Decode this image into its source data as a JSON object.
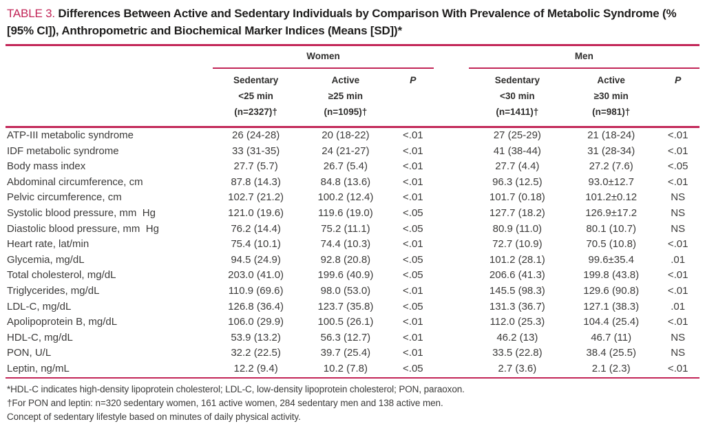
{
  "accent_color": "#c22557",
  "title": {
    "tag": "TABLE 3.",
    "text": " Differences Between Active and Sedentary Individuals by Comparison With Prevalence of Metabolic Syndrome (% [95% CI]), Anthropometric and Biochemical Marker Indices (Means [SD])*"
  },
  "table": {
    "groups": {
      "women": "Women",
      "men": "Men"
    },
    "headers": {
      "women_sedentary": {
        "line1": "Sedentary",
        "line2": "<25 min",
        "line3": "(n=2327)†"
      },
      "women_active": {
        "line1": "Active",
        "line2": "≥25 min",
        "line3": "(n=1095)†"
      },
      "women_p": "P",
      "men_sedentary": {
        "line1": "Sedentary",
        "line2": "<30 min",
        "line3": "(n=1411)†"
      },
      "men_active": {
        "line1": "Active",
        "line2": "≥30 min",
        "line3": "(n=981)†"
      },
      "men_p": "P"
    },
    "rows": [
      {
        "label": "ATP-III metabolic syndrome",
        "w_sed": "26 (24-28)",
        "w_act": "20 (18-22)",
        "w_p": "<.01",
        "m_sed": "27 (25-29)",
        "m_act": "21 (18-24)",
        "m_p": "<.01"
      },
      {
        "label": "IDF metabolic syndrome",
        "w_sed": "33 (31-35)",
        "w_act": "24 (21-27)",
        "w_p": "<.01",
        "m_sed": "41 (38-44)",
        "m_act": "31 (28-34)",
        "m_p": "<.01"
      },
      {
        "label": "Body mass index",
        "w_sed": "27.7 (5.7)",
        "w_act": "26.7 (5.4)",
        "w_p": "<.01",
        "m_sed": "27.7 (4.4)",
        "m_act": "27.2 (7.6)",
        "m_p": "<.05"
      },
      {
        "label": "Abdominal circumference, cm",
        "w_sed": "87.8 (14.3)",
        "w_act": "84.8 (13.6)",
        "w_p": "<.01",
        "m_sed": "96.3 (12.5)",
        "m_act": "93.0±12.7",
        "m_p": "<.01"
      },
      {
        "label": "Pelvic circumference, cm",
        "w_sed": "102.7 (21.2)",
        "w_act": "100.2 (12.4)",
        "w_p": "<.01",
        "m_sed": "101.7 (0.18)",
        "m_act": "101.2±0.12",
        "m_p": "NS"
      },
      {
        "label": "Systolic blood pressure, mm  Hg",
        "w_sed": "121.0 (19.6)",
        "w_act": "119.6 (19.0)",
        "w_p": "<.05",
        "m_sed": "127.7 (18.2)",
        "m_act": "126.9±17.2",
        "m_p": "NS"
      },
      {
        "label": "Diastolic blood pressure, mm  Hg",
        "w_sed": "76.2 (14.4)",
        "w_act": "75.2 (11.1)",
        "w_p": "<.05",
        "m_sed": "80.9 (11.0)",
        "m_act": "80.1 (10.7)",
        "m_p": "NS"
      },
      {
        "label": "Heart rate, lat/min",
        "w_sed": "75.4 (10.1)",
        "w_act": "74.4 (10.3)",
        "w_p": "<.01",
        "m_sed": "72.7 (10.9)",
        "m_act": "70.5 (10.8)",
        "m_p": "<.01"
      },
      {
        "label": "Glycemia, mg/dL",
        "w_sed": "94.5 (24.9)",
        "w_act": "92.8 (20.8)",
        "w_p": "<.05",
        "m_sed": "101.2 (28.1)",
        "m_act": "99.6±35.4",
        "m_p": ".01"
      },
      {
        "label": "Total cholesterol, mg/dL",
        "w_sed": "203.0 (41.0)",
        "w_act": "199.6 (40.9)",
        "w_p": "<.05",
        "m_sed": "206.6 (41.3)",
        "m_act": "199.8 (43.8)",
        "m_p": "<.01"
      },
      {
        "label": "Triglycerides, mg/dL",
        "w_sed": "110.9 (69.6)",
        "w_act": "98.0 (53.0)",
        "w_p": "<.01",
        "m_sed": "145.5 (98.3)",
        "m_act": "129.6 (90.8)",
        "m_p": "<.01"
      },
      {
        "label": "LDL-C, mg/dL",
        "w_sed": "126.8 (36.4)",
        "w_act": "123.7 (35.8)",
        "w_p": "<.05",
        "m_sed": "131.3 (36.7)",
        "m_act": "127.1 (38.3)",
        "m_p": ".01"
      },
      {
        "label": "Apolipoprotein B, mg/dL",
        "w_sed": "106.0 (29.9)",
        "w_act": "100.5 (26.1)",
        "w_p": "<.01",
        "m_sed": "112.0 (25.3)",
        "m_act": "104.4 (25.4)",
        "m_p": "<.01"
      },
      {
        "label": "HDL-C, mg/dL",
        "w_sed": "53.9 (13.2)",
        "w_act": "56.3 (12.7)",
        "w_p": "<.01",
        "m_sed": "46.2 (13)",
        "m_act": "46.7 (11)",
        "m_p": "NS"
      },
      {
        "label": "PON, U/L",
        "w_sed": "32.2 (22.5)",
        "w_act": "39.7 (25.4)",
        "w_p": "<.01",
        "m_sed": "33.5 (22.8)",
        "m_act": "38.4 (25.5)",
        "m_p": "NS"
      },
      {
        "label": "Leptin, ng/mL",
        "w_sed": "12.2 (9.4)",
        "w_act": "10.2 (7.8)",
        "w_p": "<.05",
        "m_sed": "2.7 (3.6)",
        "m_act": "2.1 (2.3)",
        "m_p": "<.01"
      }
    ]
  },
  "footnotes": [
    "*HDL-C indicates high-density lipoprotein cholesterol; LDL-C, low-density lipoprotein cholesterol; PON, paraoxon.",
    "†For PON and leptin: n=320 sedentary women, 161 active women, 284 sedentary men and 138 active men.",
    "Concept of sedentary lifestyle based on minutes of daily physical activity."
  ]
}
